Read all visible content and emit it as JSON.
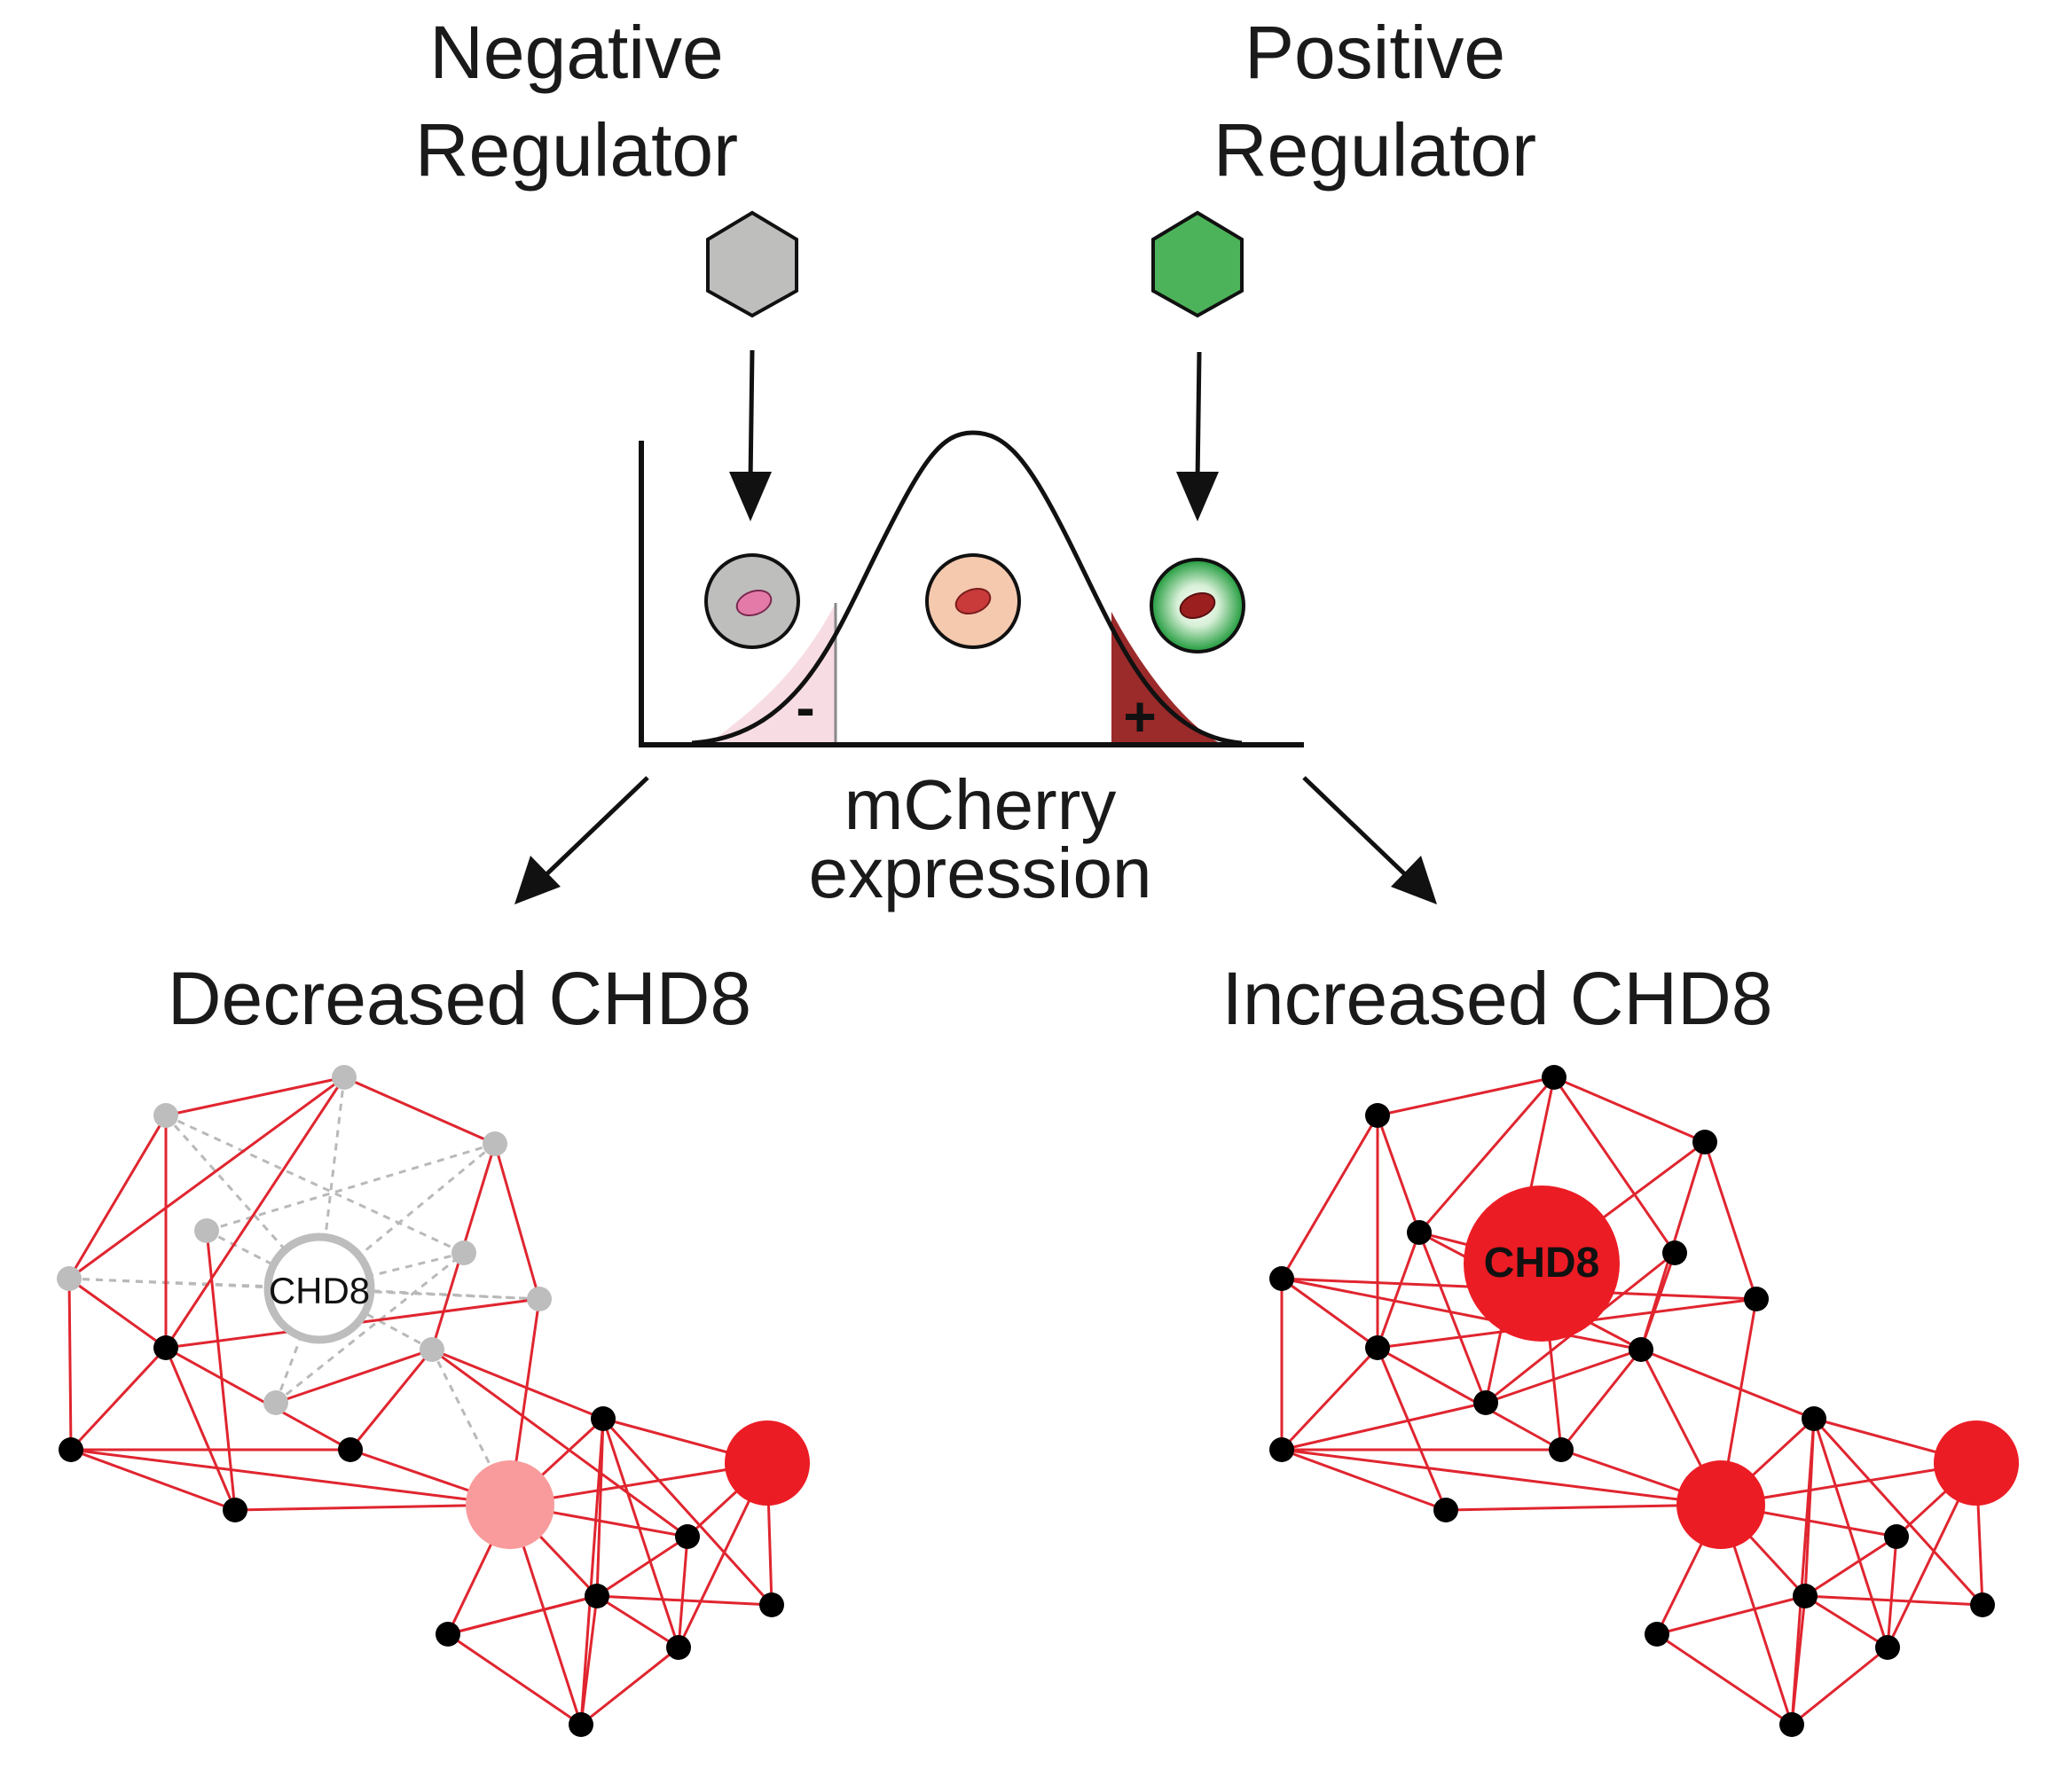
{
  "labels": {
    "negative_regulator_line1": "Negative",
    "negative_regulator_line2": "Regulator",
    "positive_regulator_line1": "Positive",
    "positive_regulator_line2": "Regulator",
    "xaxis_line1": "mCherry",
    "xaxis_line2": "expression",
    "minus_sign": "-",
    "plus_sign": "+",
    "decreased_heading": "Decreased CHD8",
    "increased_heading": "Increased CHD8",
    "left_hub_label": "CHD8",
    "right_hub_label": "CHD8"
  },
  "colors": {
    "negative_regulator": "#bebfbc",
    "positive_regulator": "#4db35a",
    "negative_gate": "#f7dde3",
    "positive_gate": "#9b2a2a",
    "network_edge": "#e0252f",
    "dashed_edge": "#b9b9b9",
    "hub_red": "#ec1c24",
    "hub_pink": "#f99b9c",
    "inactive_node": "#bdbdbd"
  },
  "icons": {
    "negative_regulator": "gray-hexagon",
    "positive_regulator": "green-hexagon",
    "low_cell": "gray-cell",
    "mid_cell": "peach-cell",
    "high_cell": "green-cell"
  }
}
